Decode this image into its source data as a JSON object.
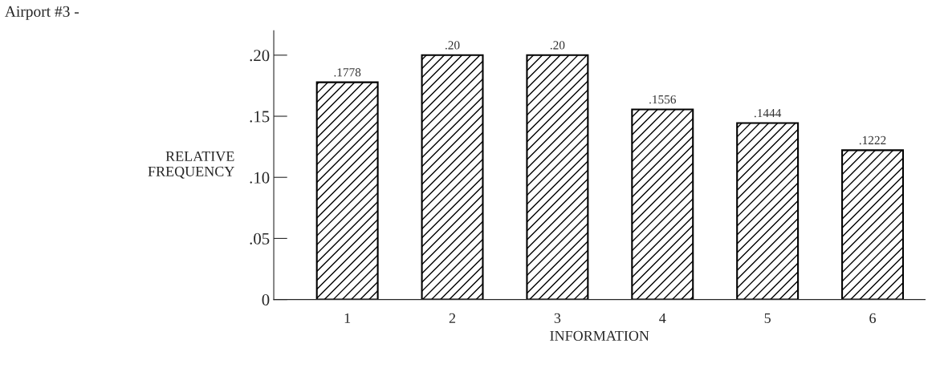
{
  "chart_data": {
    "type": "bar",
    "title": "Airport #3 -",
    "xlabel": "INFORMATION",
    "ylabel": "RELATIVE\nFREQUENCY",
    "categories": [
      "1",
      "2",
      "3",
      "4",
      "5",
      "6"
    ],
    "values": [
      0.1778,
      0.2,
      0.2,
      0.1556,
      0.1444,
      0.1222
    ],
    "value_labels": [
      ".1778",
      ".20",
      ".20",
      ".1556",
      ".1444",
      ".1222"
    ],
    "color": "#000000",
    "ylim": [
      0,
      0.22
    ],
    "yticks": [
      0,
      {
        "value": 0.05,
        "label": ".05"
      },
      {
        "value": 0.1,
        "label": ".10"
      },
      {
        "value": 0.15,
        "label": ".15"
      },
      {
        "value": 0.2,
        "label": ".20"
      }
    ],
    "grid": false,
    "legend": false
  }
}
